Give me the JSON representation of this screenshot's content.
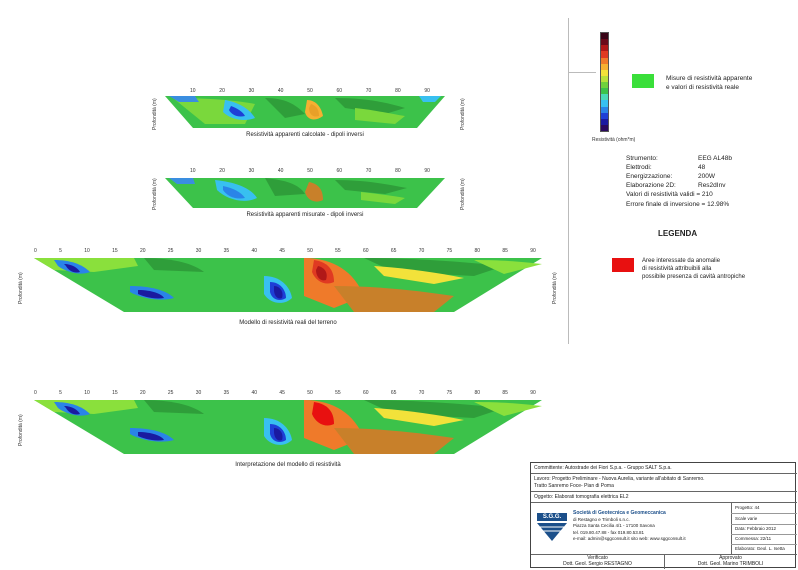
{
  "sections": {
    "calc": {
      "caption": "Resistività apparenti calcolate - dipoli inversi",
      "left_label": "Profondità (m)",
      "right_label": "Profondità (m)",
      "ticks": [
        "10",
        "20",
        "30",
        "40",
        "50",
        "60",
        "70",
        "80",
        "90"
      ]
    },
    "meas": {
      "caption": "Resistività apparenti misurate - dipoli inversi",
      "left_label": "Profondità (m)",
      "right_label": "Profondità (m)",
      "ticks": [
        "10",
        "20",
        "30",
        "40",
        "50",
        "60",
        "70",
        "80",
        "90"
      ]
    },
    "model": {
      "caption": "Modello di resistività reali del terreno",
      "left_label": "Profondità (m)",
      "right_label": "Profondità (m)",
      "ticks": [
        "0",
        "5",
        "10",
        "15",
        "20",
        "25",
        "30",
        "35",
        "40",
        "45",
        "50",
        "55",
        "60",
        "65",
        "70",
        "75",
        "80",
        "85",
        "90"
      ]
    },
    "interp": {
      "caption": "Interpretazione del modello di resistività",
      "left_label": "Profondità (m)",
      "ticks": [
        "0",
        "5",
        "10",
        "15",
        "20",
        "25",
        "30",
        "35",
        "40",
        "45",
        "50",
        "55",
        "60",
        "65",
        "70",
        "75",
        "80",
        "85",
        "90"
      ]
    }
  },
  "colorbar": {
    "label": "Resistività (ohm*m)",
    "colors": [
      "#2a0a5e",
      "#1a1aa0",
      "#1e3fd6",
      "#2a84e8",
      "#38c0f0",
      "#4ad8b8",
      "#3cc24a",
      "#6fd23c",
      "#b8e23a",
      "#f2e23a",
      "#f5b032",
      "#ef7a2a",
      "#e03a22",
      "#b01818",
      "#6a0a1a",
      "#3a0518"
    ]
  },
  "legend_green": {
    "color": "#3adf3a",
    "line1": "Misure di resistività apparente",
    "line2": "e valori di resistività reale"
  },
  "instrument": {
    "rows": [
      {
        "k": "Strumento:",
        "v": "EEG AL48b"
      },
      {
        "k": "Elettrodi:",
        "v": "48"
      },
      {
        "k": "Energizzazione:",
        "v": "200W"
      },
      {
        "k": "Elaborazione 2D:",
        "v": "Res2dInv"
      }
    ],
    "valid": "Valori di resistività validi = 210",
    "error": "Errore finale di inversione = 12.98%"
  },
  "legenda": {
    "title": "LEGENDA",
    "color": "#e81010",
    "line1": "Aree interessate da anomalie",
    "line2": "di resistività attribuibili alla",
    "line3": "possibile presenza di cavità antropiche"
  },
  "titleblock": {
    "committente": "Committente: Autostrade dei Fiori S.p.a. - Gruppo SALT S.p.a.",
    "lavoro1": "Lavoro: Progetto Preliminare - Nuova Aurelia, variante all'abitato di Sanremo.",
    "lavoro2": "Tratto Sanremo Foce- Pian di Poma",
    "oggetto": "Oggetto: Elaborati tomografia elettrica EL2",
    "logo": "S.G.G.",
    "company": "Società di Geotecnica e Geomeccanica",
    "company2": "di Restagno e Trimboli s.n.c.",
    "addr": "Piazza Santa Cecilia 4/1 - 17100 Savona",
    "tel": "tel. 019.80.47.88 - fax 019.80.53.81",
    "email": "e-mail: admin@sggconsult.it  sito web: www.sggconsult.it",
    "progetto": "Progetto: 44",
    "scala": "Scale varie",
    "data": "Data: Febbraio 2012",
    "commessa": "Commessa: 22/11",
    "elaborato": "Elaborato: Geol. L. Isetta",
    "verificato_label": "Verificato",
    "verificato_name": "Dott. Geol. Sergio RESTAGNO",
    "approvato_label": "Approvato",
    "approvato_name": "Dott. Geol. Marino TRIMBOLI"
  }
}
